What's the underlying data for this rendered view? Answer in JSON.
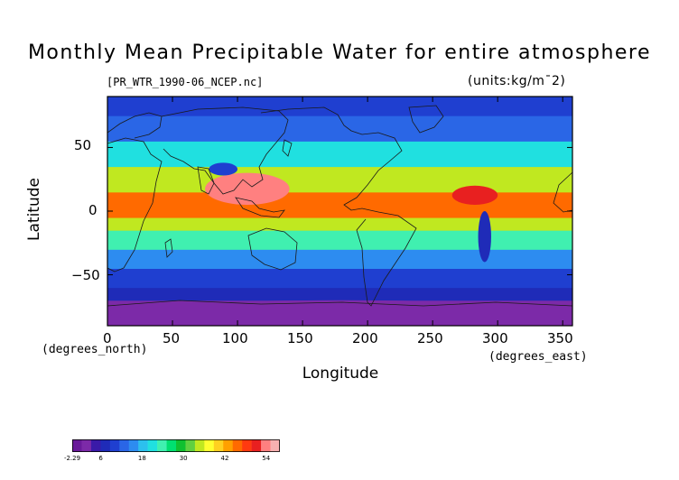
{
  "title": "Monthly Mean Precipitable Water for entire atmosphere",
  "file_label": "[PR_WTR_1990-06_NCEP.nc]",
  "units_label": "(units:kg/m¯2)",
  "axes": {
    "ylabel": "Latitude",
    "xlabel": "Longitude",
    "y_unit": "(degrees_north)",
    "x_unit": "(degrees_east)",
    "y_ticks": [
      "50",
      "0",
      "−50"
    ],
    "x_ticks": [
      "0",
      "50",
      "100",
      "150",
      "200",
      "250",
      "300",
      "350"
    ],
    "xlim": [
      0,
      357.5
    ],
    "ylim": [
      -90,
      90
    ]
  },
  "colorbar": {
    "tick_labels": [
      "-2.29",
      "6",
      "18",
      "30",
      "42",
      "54"
    ],
    "colors": [
      "#6a1a9a",
      "#7c2aa8",
      "#3a1aa8",
      "#1f2bb8",
      "#1f3fd0",
      "#2a66e6",
      "#2d8cf0",
      "#2cc0ee",
      "#20e0e0",
      "#40f0b0",
      "#00e070",
      "#10c030",
      "#60d040",
      "#c0e820",
      "#ffff30",
      "#ffd020",
      "#ffa000",
      "#ff6a00",
      "#ff3a10",
      "#e82020",
      "#ff8080",
      "#f7b0b0"
    ]
  },
  "chart_data": {
    "type": "heatmap",
    "title": "Monthly Mean Precipitable Water for entire atmosphere",
    "xlabel": "Longitude",
    "ylabel": "Latitude",
    "x_unit": "degrees_east",
    "y_unit": "degrees_north",
    "variable_units": "kg/m^2",
    "xlim": [
      0,
      357.5
    ],
    "ylim": [
      -90,
      90
    ],
    "value_range": [
      -2.29,
      58
    ],
    "colorbar_ticks": [
      -2.29,
      6,
      18,
      30,
      42,
      54
    ],
    "latitude_bands": [
      {
        "lat_min": -90,
        "lat_max": -70,
        "approx_value": 2
      },
      {
        "lat_min": -70,
        "lat_max": -60,
        "approx_value": 6
      },
      {
        "lat_min": -60,
        "lat_max": -45,
        "approx_value": 10
      },
      {
        "lat_min": -45,
        "lat_max": -30,
        "approx_value": 16
      },
      {
        "lat_min": -30,
        "lat_max": -15,
        "approx_value": 24
      },
      {
        "lat_min": -15,
        "lat_max": -5,
        "approx_value": 36
      },
      {
        "lat_min": -5,
        "lat_max": 15,
        "approx_value": 46
      },
      {
        "lat_min": 15,
        "lat_max": 35,
        "approx_value": 34
      },
      {
        "lat_min": 35,
        "lat_max": 55,
        "approx_value": 22
      },
      {
        "lat_min": 55,
        "lat_max": 75,
        "approx_value": 14
      },
      {
        "lat_min": 75,
        "lat_max": 90,
        "approx_value": 10
      }
    ],
    "maxima": [
      {
        "region": "South/Southeast Asia",
        "lon_range": [
          75,
          140
        ],
        "lat_range": [
          5,
          30
        ],
        "approx_value": 55
      },
      {
        "region": "Central America / Caribbean",
        "lon_range": [
          265,
          300
        ],
        "lat_range": [
          5,
          20
        ],
        "approx_value": 50
      }
    ],
    "minima": [
      {
        "region": "Tibetan Plateau",
        "lon_range": [
          78,
          100
        ],
        "lat_range": [
          28,
          38
        ],
        "approx_value": 10
      },
      {
        "region": "Andes",
        "lon_range": [
          285,
          295
        ],
        "lat_range": [
          -40,
          0
        ],
        "approx_value": 6
      },
      {
        "region": "Antarctica",
        "lon_range": [
          0,
          357.5
        ],
        "lat_range": [
          -90,
          -70
        ],
        "approx_value": 1
      }
    ]
  }
}
